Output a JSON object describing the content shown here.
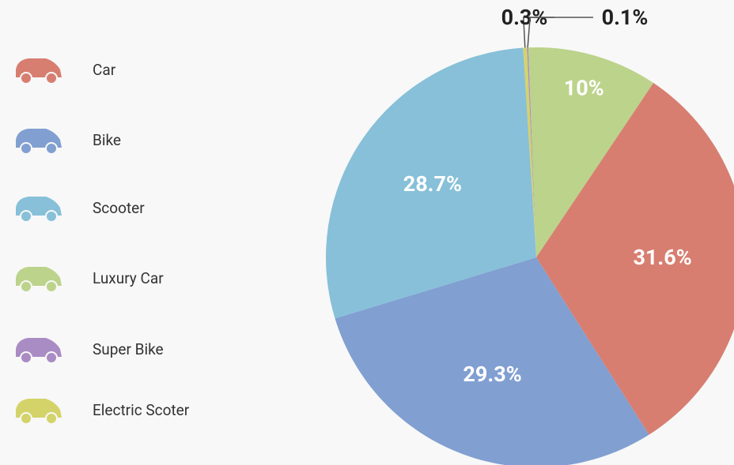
{
  "chart_data": {
    "type": "pie",
    "categories": [
      "Car",
      "Bike",
      "Scooter",
      "Luxury Car",
      "Super Bike",
      "Electric Scoter"
    ],
    "values": [
      31.6,
      29.3,
      28.7,
      10,
      0.1,
      0.3
    ],
    "value_labels": [
      "31.6%",
      "29.3%",
      "28.7%",
      "10%",
      "0.1%",
      "0.3%"
    ],
    "colors": [
      "#d77e71",
      "#819fd1",
      "#87c0d8",
      "#bcd38b",
      "#a98cc4",
      "#d4d36a"
    ],
    "legend": "left"
  }
}
